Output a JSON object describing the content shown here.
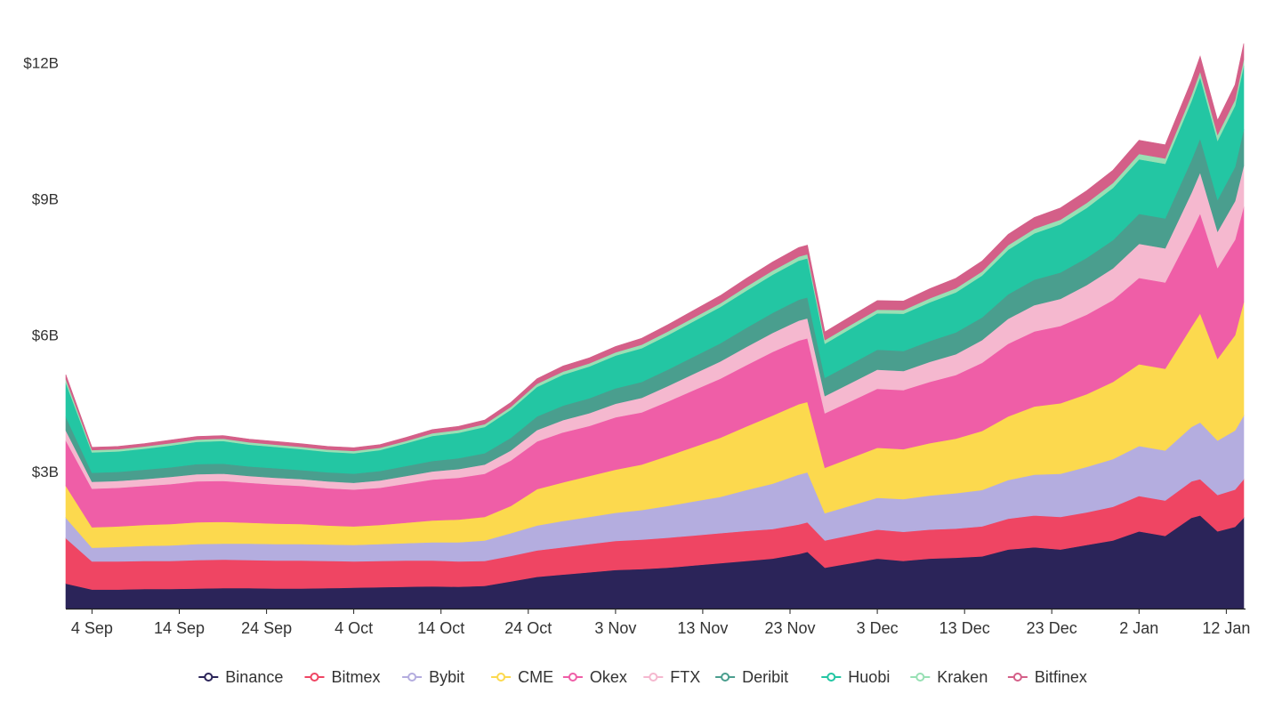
{
  "chart_data": {
    "type": "area",
    "stacked": true,
    "title": "",
    "xlabel": "",
    "ylabel": "",
    "ylim": [
      0,
      13.2
    ],
    "y_unit": "billion USD",
    "y_ticks": [
      {
        "value": 3,
        "label": "$3B"
      },
      {
        "value": 6,
        "label": "$6B"
      },
      {
        "value": 9,
        "label": "$9B"
      },
      {
        "value": 12,
        "label": "$12B"
      }
    ],
    "x_ticks": [
      "4 Sep",
      "14 Sep",
      "24 Sep",
      "4 Oct",
      "14 Oct",
      "24 Oct",
      "3 Nov",
      "13 Nov",
      "23 Nov",
      "3 Dec",
      "13 Dec",
      "23 Dec",
      "2 Jan",
      "12 Jan"
    ],
    "dates": [
      "1 Sep",
      "4 Sep",
      "7 Sep",
      "10 Sep",
      "13 Sep",
      "16 Sep",
      "19 Sep",
      "22 Sep",
      "25 Sep",
      "28 Sep",
      "1 Oct",
      "4 Oct",
      "7 Oct",
      "10 Oct",
      "13 Oct",
      "16 Oct",
      "19 Oct",
      "22 Oct",
      "25 Oct",
      "28 Oct",
      "31 Oct",
      "3 Nov",
      "6 Nov",
      "9 Nov",
      "12 Nov",
      "15 Nov",
      "18 Nov",
      "21 Nov",
      "24 Nov",
      "25 Nov",
      "27 Nov",
      "30 Nov",
      "3 Dec",
      "6 Dec",
      "9 Dec",
      "12 Dec",
      "15 Dec",
      "18 Dec",
      "21 Dec",
      "24 Dec",
      "27 Dec",
      "30 Dec",
      "2 Jan",
      "5 Jan",
      "8 Jan",
      "9 Jan",
      "11 Jan",
      "13 Jan",
      "14 Jan"
    ],
    "grid": false,
    "legend_position": "bottom",
    "series": [
      {
        "name": "Binance",
        "color": "#2b2459",
        "values": [
          0.55,
          0.42,
          0.42,
          0.43,
          0.43,
          0.44,
          0.45,
          0.45,
          0.44,
          0.44,
          0.45,
          0.46,
          0.47,
          0.48,
          0.49,
          0.48,
          0.5,
          0.6,
          0.7,
          0.75,
          0.8,
          0.85,
          0.87,
          0.9,
          0.95,
          1.0,
          1.05,
          1.1,
          1.2,
          1.25,
          0.9,
          1.0,
          1.1,
          1.05,
          1.1,
          1.12,
          1.15,
          1.3,
          1.35,
          1.3,
          1.4,
          1.5,
          1.7,
          1.6,
          2.0,
          2.05,
          1.7,
          1.8,
          2.0
        ]
      },
      {
        "name": "Bitmex",
        "color": "#ef4563",
        "values": [
          1.0,
          0.62,
          0.62,
          0.62,
          0.62,
          0.63,
          0.63,
          0.62,
          0.62,
          0.62,
          0.6,
          0.58,
          0.58,
          0.58,
          0.57,
          0.56,
          0.55,
          0.56,
          0.58,
          0.6,
          0.62,
          0.64,
          0.65,
          0.66,
          0.66,
          0.66,
          0.66,
          0.65,
          0.65,
          0.65,
          0.6,
          0.62,
          0.64,
          0.64,
          0.64,
          0.64,
          0.66,
          0.68,
          0.7,
          0.72,
          0.72,
          0.74,
          0.78,
          0.78,
          0.8,
          0.8,
          0.8,
          0.82,
          0.85
        ]
      },
      {
        "name": "Bybit",
        "color": "#b4addf",
        "values": [
          0.45,
          0.3,
          0.32,
          0.33,
          0.34,
          0.35,
          0.35,
          0.36,
          0.36,
          0.36,
          0.36,
          0.36,
          0.37,
          0.38,
          0.4,
          0.42,
          0.45,
          0.5,
          0.55,
          0.58,
          0.6,
          0.62,
          0.65,
          0.7,
          0.75,
          0.8,
          0.9,
          1.0,
          1.1,
          1.1,
          0.6,
          0.65,
          0.7,
          0.72,
          0.75,
          0.78,
          0.8,
          0.85,
          0.9,
          0.95,
          1.0,
          1.05,
          1.1,
          1.1,
          1.2,
          1.25,
          1.2,
          1.3,
          1.4
        ]
      },
      {
        "name": "CME",
        "color": "#fcd94e",
        "values": [
          0.7,
          0.45,
          0.45,
          0.46,
          0.47,
          0.48,
          0.48,
          0.46,
          0.45,
          0.44,
          0.42,
          0.41,
          0.42,
          0.45,
          0.48,
          0.5,
          0.52,
          0.6,
          0.8,
          0.85,
          0.9,
          0.95,
          1.0,
          1.1,
          1.2,
          1.3,
          1.4,
          1.5,
          1.55,
          1.55,
          1.0,
          1.05,
          1.1,
          1.1,
          1.15,
          1.2,
          1.3,
          1.4,
          1.5,
          1.55,
          1.6,
          1.7,
          1.8,
          1.8,
          2.2,
          2.4,
          1.8,
          2.1,
          2.5
        ]
      },
      {
        "name": "Okex",
        "color": "#ef5ea7",
        "values": [
          1.0,
          0.85,
          0.85,
          0.86,
          0.88,
          0.9,
          0.9,
          0.88,
          0.86,
          0.84,
          0.82,
          0.81,
          0.82,
          0.86,
          0.9,
          0.92,
          0.95,
          1.0,
          1.05,
          1.1,
          1.1,
          1.15,
          1.15,
          1.2,
          1.25,
          1.3,
          1.35,
          1.4,
          1.4,
          1.4,
          1.2,
          1.25,
          1.3,
          1.3,
          1.35,
          1.4,
          1.5,
          1.6,
          1.65,
          1.7,
          1.75,
          1.8,
          1.9,
          1.9,
          2.1,
          2.2,
          2.0,
          2.1,
          2.1
        ]
      },
      {
        "name": "FTX",
        "color": "#f5b8cf",
        "values": [
          0.22,
          0.15,
          0.15,
          0.15,
          0.16,
          0.16,
          0.16,
          0.15,
          0.15,
          0.15,
          0.15,
          0.15,
          0.16,
          0.17,
          0.18,
          0.19,
          0.2,
          0.22,
          0.25,
          0.27,
          0.28,
          0.3,
          0.32,
          0.34,
          0.36,
          0.38,
          0.4,
          0.42,
          0.44,
          0.44,
          0.38,
          0.4,
          0.42,
          0.42,
          0.44,
          0.46,
          0.5,
          0.55,
          0.58,
          0.6,
          0.65,
          0.7,
          0.75,
          0.75,
          0.85,
          0.9,
          0.8,
          0.85,
          0.9
        ]
      },
      {
        "name": "Deribit",
        "color": "#4a9e8e",
        "values": [
          0.3,
          0.2,
          0.2,
          0.21,
          0.21,
          0.22,
          0.22,
          0.21,
          0.21,
          0.2,
          0.2,
          0.2,
          0.21,
          0.22,
          0.23,
          0.24,
          0.25,
          0.28,
          0.3,
          0.32,
          0.33,
          0.34,
          0.35,
          0.36,
          0.38,
          0.4,
          0.42,
          0.44,
          0.46,
          0.46,
          0.4,
          0.42,
          0.44,
          0.44,
          0.46,
          0.48,
          0.5,
          0.54,
          0.56,
          0.58,
          0.6,
          0.62,
          0.66,
          0.66,
          0.72,
          0.75,
          0.7,
          0.75,
          0.8
        ]
      },
      {
        "name": "Huobi",
        "color": "#23c6a3",
        "values": [
          0.75,
          0.45,
          0.45,
          0.46,
          0.48,
          0.49,
          0.5,
          0.48,
          0.47,
          0.46,
          0.45,
          0.45,
          0.46,
          0.5,
          0.55,
          0.56,
          0.58,
          0.62,
          0.65,
          0.68,
          0.7,
          0.72,
          0.74,
          0.76,
          0.78,
          0.8,
          0.82,
          0.84,
          0.86,
          0.86,
          0.75,
          0.78,
          0.8,
          0.82,
          0.85,
          0.88,
          0.92,
          0.98,
          1.02,
          1.06,
          1.1,
          1.15,
          1.2,
          1.2,
          1.3,
          1.35,
          1.3,
          1.35,
          1.4
        ]
      },
      {
        "name": "Kraken",
        "color": "#98e0b4",
        "values": [
          0.08,
          0.05,
          0.05,
          0.05,
          0.05,
          0.05,
          0.05,
          0.05,
          0.05,
          0.05,
          0.05,
          0.05,
          0.05,
          0.05,
          0.06,
          0.06,
          0.06,
          0.06,
          0.07,
          0.07,
          0.07,
          0.07,
          0.08,
          0.08,
          0.08,
          0.08,
          0.09,
          0.09,
          0.09,
          0.09,
          0.08,
          0.08,
          0.08,
          0.08,
          0.09,
          0.09,
          0.09,
          0.1,
          0.1,
          0.1,
          0.11,
          0.11,
          0.12,
          0.12,
          0.13,
          0.13,
          0.13,
          0.13,
          0.14
        ]
      },
      {
        "name": "Bitfinex",
        "color": "#d45f88",
        "values": [
          0.1,
          0.06,
          0.06,
          0.06,
          0.07,
          0.07,
          0.07,
          0.07,
          0.07,
          0.07,
          0.07,
          0.07,
          0.07,
          0.08,
          0.08,
          0.08,
          0.09,
          0.1,
          0.11,
          0.12,
          0.12,
          0.13,
          0.14,
          0.15,
          0.16,
          0.17,
          0.18,
          0.19,
          0.2,
          0.2,
          0.18,
          0.19,
          0.2,
          0.2,
          0.21,
          0.22,
          0.23,
          0.24,
          0.25,
          0.26,
          0.27,
          0.28,
          0.3,
          0.3,
          0.32,
          0.33,
          0.32,
          0.33,
          0.35
        ]
      }
    ]
  }
}
